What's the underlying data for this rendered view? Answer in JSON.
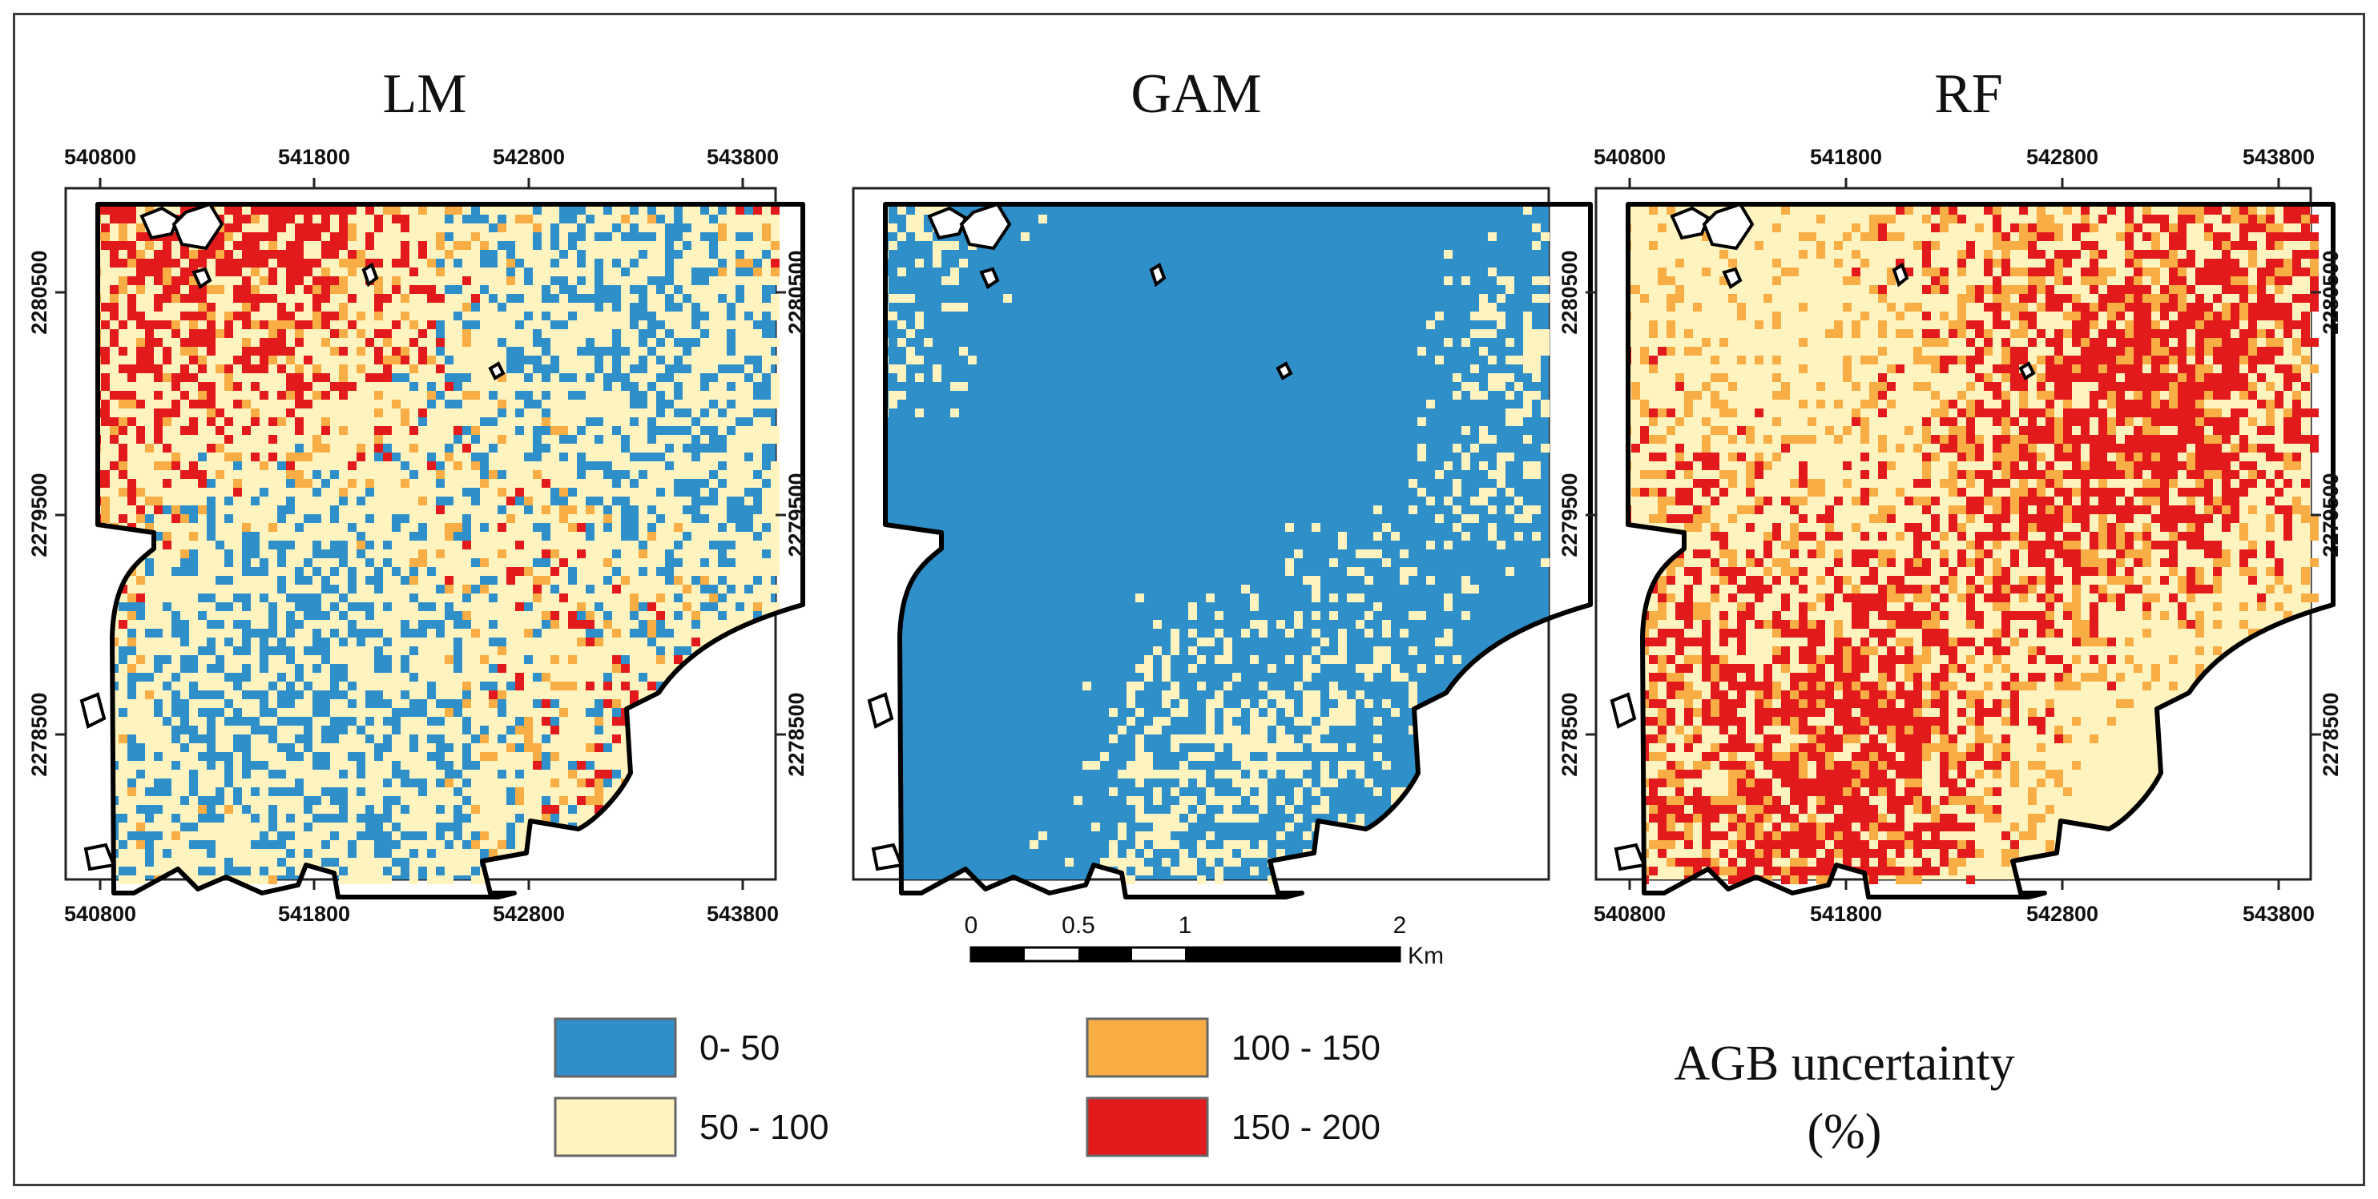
{
  "figure": {
    "legend_title_line1": "AGB uncertainty",
    "legend_title_line2": "(%)",
    "legend": [
      {
        "label": "0- 50",
        "color": "#2f8fc9"
      },
      {
        "label": "50 - 100",
        "color": "#fff3bf"
      },
      {
        "label": "100 - 150",
        "color": "#f9ad45"
      },
      {
        "label": "150 - 200",
        "color": "#e31a1c"
      }
    ],
    "scale_bar": {
      "ticks": [
        "0",
        "0.5",
        "1",
        "2"
      ],
      "unit": "Km"
    }
  },
  "panels": [
    {
      "title": "LM",
      "x_ticks": [
        "540800",
        "541800",
        "542800",
        "543800"
      ],
      "y_ticks": [
        "2280500",
        "2279500",
        "2278500"
      ],
      "weights": [
        0.4,
        0.4,
        0.07,
        0.13
      ]
    },
    {
      "title": "GAM",
      "x_ticks": [],
      "y_ticks": [],
      "weights": [
        0.93,
        0.07,
        0.0,
        0.0
      ]
    },
    {
      "title": "RF",
      "x_ticks": [
        "540800",
        "541800",
        "542800",
        "543800"
      ],
      "y_ticks": [
        "2280500",
        "2279500",
        "2278500"
      ],
      "weights": [
        0.04,
        0.66,
        0.12,
        0.18
      ]
    }
  ]
}
